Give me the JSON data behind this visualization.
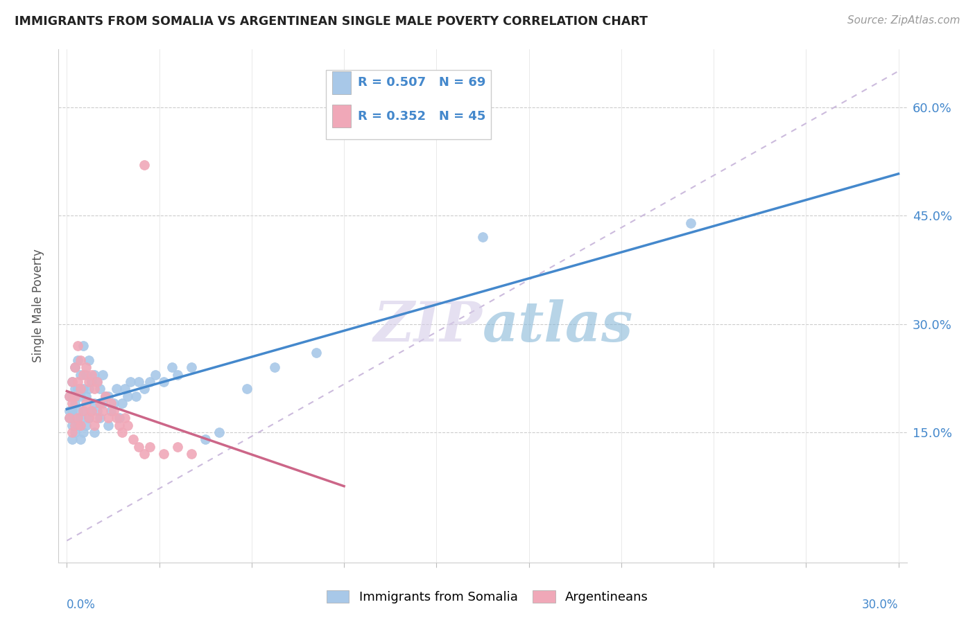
{
  "title": "IMMIGRANTS FROM SOMALIA VS ARGENTINEAN SINGLE MALE POVERTY CORRELATION CHART",
  "source": "Source: ZipAtlas.com",
  "ylabel": "Single Male Poverty",
  "x_min": 0.0,
  "x_max": 0.3,
  "y_min": -0.03,
  "y_max": 0.68,
  "yticks": [
    0.15,
    0.3,
    0.45,
    0.6
  ],
  "ytick_labels": [
    "15.0%",
    "30.0%",
    "45.0%",
    "60.0%"
  ],
  "legend_r1": "0.507",
  "legend_n1": "69",
  "legend_r2": "0.352",
  "legend_n2": "45",
  "color_blue": "#a8c8e8",
  "color_pink": "#f0a8b8",
  "color_blue_text": "#4488cc",
  "color_pink_text": "#cc6688",
  "color_line_blue": "#4488cc",
  "color_line_pink": "#cc6688",
  "color_ref_line": "#ccbbdd",
  "watermark_zip": "ZIP",
  "watermark_atlas": "atlas",
  "blue_scatter_x": [
    0.001,
    0.001,
    0.001,
    0.002,
    0.002,
    0.002,
    0.002,
    0.002,
    0.003,
    0.003,
    0.003,
    0.003,
    0.003,
    0.004,
    0.004,
    0.004,
    0.004,
    0.005,
    0.005,
    0.005,
    0.005,
    0.006,
    0.006,
    0.006,
    0.006,
    0.007,
    0.007,
    0.007,
    0.008,
    0.008,
    0.008,
    0.009,
    0.009,
    0.01,
    0.01,
    0.01,
    0.011,
    0.011,
    0.012,
    0.012,
    0.013,
    0.013,
    0.014,
    0.015,
    0.015,
    0.016,
    0.017,
    0.018,
    0.019,
    0.02,
    0.021,
    0.022,
    0.023,
    0.025,
    0.026,
    0.028,
    0.03,
    0.032,
    0.035,
    0.038,
    0.04,
    0.045,
    0.05,
    0.055,
    0.065,
    0.075,
    0.09,
    0.15,
    0.225
  ],
  "blue_scatter_y": [
    0.17,
    0.18,
    0.2,
    0.14,
    0.16,
    0.18,
    0.2,
    0.22,
    0.15,
    0.17,
    0.19,
    0.21,
    0.24,
    0.16,
    0.18,
    0.21,
    0.25,
    0.14,
    0.17,
    0.2,
    0.23,
    0.15,
    0.18,
    0.21,
    0.27,
    0.16,
    0.2,
    0.23,
    0.17,
    0.21,
    0.25,
    0.18,
    0.22,
    0.15,
    0.19,
    0.23,
    0.18,
    0.22,
    0.17,
    0.21,
    0.19,
    0.23,
    0.2,
    0.16,
    0.2,
    0.18,
    0.19,
    0.21,
    0.17,
    0.19,
    0.21,
    0.2,
    0.22,
    0.2,
    0.22,
    0.21,
    0.22,
    0.23,
    0.22,
    0.24,
    0.23,
    0.24,
    0.14,
    0.15,
    0.21,
    0.24,
    0.26,
    0.42,
    0.44
  ],
  "pink_scatter_x": [
    0.001,
    0.001,
    0.002,
    0.002,
    0.002,
    0.003,
    0.003,
    0.003,
    0.004,
    0.004,
    0.004,
    0.005,
    0.005,
    0.005,
    0.006,
    0.006,
    0.007,
    0.007,
    0.008,
    0.008,
    0.009,
    0.009,
    0.01,
    0.01,
    0.011,
    0.011,
    0.012,
    0.013,
    0.014,
    0.015,
    0.016,
    0.017,
    0.018,
    0.019,
    0.02,
    0.021,
    0.022,
    0.024,
    0.026,
    0.028,
    0.03,
    0.035,
    0.04,
    0.045,
    0.028
  ],
  "pink_scatter_y": [
    0.17,
    0.2,
    0.15,
    0.19,
    0.22,
    0.16,
    0.2,
    0.24,
    0.17,
    0.22,
    0.27,
    0.16,
    0.21,
    0.25,
    0.18,
    0.23,
    0.19,
    0.24,
    0.17,
    0.22,
    0.18,
    0.23,
    0.16,
    0.21,
    0.17,
    0.22,
    0.19,
    0.18,
    0.2,
    0.17,
    0.19,
    0.18,
    0.17,
    0.16,
    0.15,
    0.17,
    0.16,
    0.14,
    0.13,
    0.12,
    0.13,
    0.12,
    0.13,
    0.12,
    0.52
  ]
}
